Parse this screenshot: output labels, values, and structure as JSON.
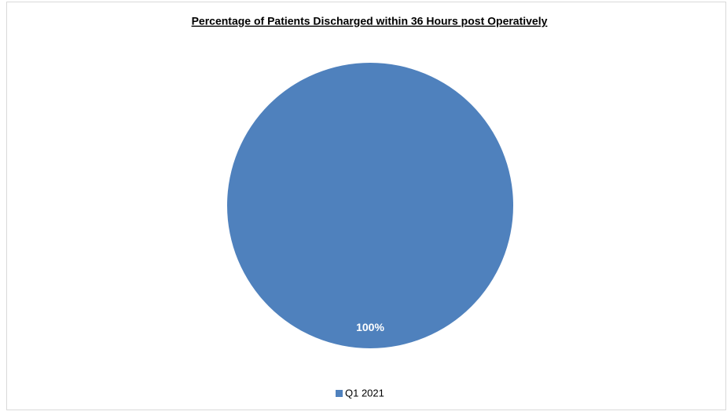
{
  "chart_data": {
    "type": "pie",
    "title": "Percentage of Patients Discharged within 36 Hours post Operatively",
    "categories": [
      "Q1 2021"
    ],
    "values": [
      100
    ],
    "value_labels": [
      "100%"
    ],
    "colors": [
      "#4f81bd"
    ],
    "legend": "bottom"
  }
}
